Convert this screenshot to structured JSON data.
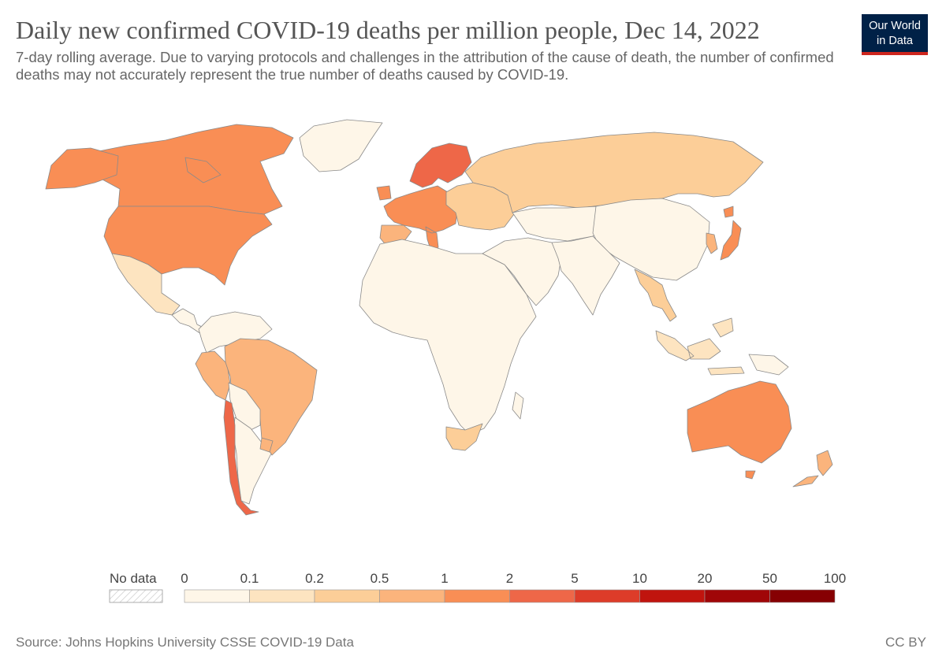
{
  "header": {
    "title": "Daily new confirmed COVID-19 deaths per million people, Dec 14, 2022",
    "subtitle": "7-day rolling average. Due to varying protocols and challenges in the attribution of the cause of death, the number of confirmed deaths may not accurately represent the true number of deaths caused by COVID-19.",
    "logo_line1": "Our World",
    "logo_line2": "in Data"
  },
  "legend": {
    "no_data_label": "No data",
    "bins": [
      {
        "label": "0",
        "color": "#fef6e8"
      },
      {
        "label": "0.1",
        "color": "#fde4c0"
      },
      {
        "label": "0.2",
        "color": "#fcce98"
      },
      {
        "label": "0.5",
        "color": "#fbb47c"
      },
      {
        "label": "1",
        "color": "#f98e55"
      },
      {
        "label": "2",
        "color": "#ee6748"
      },
      {
        "label": "5",
        "color": "#dd3c29"
      },
      {
        "label": "10",
        "color": "#c0140e"
      },
      {
        "label": "20",
        "color": "#a00608"
      },
      {
        "label": "50",
        "color": "#860003"
      }
    ],
    "end_label": "100"
  },
  "map": {
    "regions": [
      {
        "name": "canada",
        "color": "#f98e55"
      },
      {
        "name": "united-states",
        "color": "#f98e55"
      },
      {
        "name": "alaska",
        "color": "#f98e55"
      },
      {
        "name": "greenland",
        "color": "#fef6e8"
      },
      {
        "name": "mexico",
        "color": "#fde4c0"
      },
      {
        "name": "central-america",
        "color": "#fef6e8"
      },
      {
        "name": "colombia-venezuela",
        "color": "#fef6e8"
      },
      {
        "name": "peru",
        "color": "#fbb47c"
      },
      {
        "name": "brazil",
        "color": "#fbb47c"
      },
      {
        "name": "bolivia-paraguay",
        "color": "#fef6e8"
      },
      {
        "name": "argentina",
        "color": "#fef6e8"
      },
      {
        "name": "chile",
        "color": "#ee6748"
      },
      {
        "name": "uruguay",
        "color": "#fbb47c"
      },
      {
        "name": "western-europe",
        "color": "#f98e55"
      },
      {
        "name": "iberia",
        "color": "#fbb47c"
      },
      {
        "name": "scandinavia",
        "color": "#ee6748"
      },
      {
        "name": "eastern-europe",
        "color": "#fcce98"
      },
      {
        "name": "russia",
        "color": "#fcce98"
      },
      {
        "name": "africa",
        "color": "#fef6e8"
      },
      {
        "name": "south-africa",
        "color": "#fcce98"
      },
      {
        "name": "middle-east",
        "color": "#fef6e8"
      },
      {
        "name": "central-asia",
        "color": "#fef6e8"
      },
      {
        "name": "china-mongolia",
        "color": "#fef6e8"
      },
      {
        "name": "india-south-asia",
        "color": "#fef6e8"
      },
      {
        "name": "southeast-asia",
        "color": "#fcce98"
      },
      {
        "name": "indonesia",
        "color": "#fde4c0"
      },
      {
        "name": "japan",
        "color": "#f98e55"
      },
      {
        "name": "korea",
        "color": "#fbb47c"
      },
      {
        "name": "australia",
        "color": "#f98e55"
      },
      {
        "name": "new-zealand",
        "color": "#fbb47c"
      },
      {
        "name": "papua-new-guinea",
        "color": "#fef6e8"
      }
    ]
  },
  "footer": {
    "source": "Source: Johns Hopkins University CSSE COVID-19 Data",
    "license": "CC BY"
  }
}
